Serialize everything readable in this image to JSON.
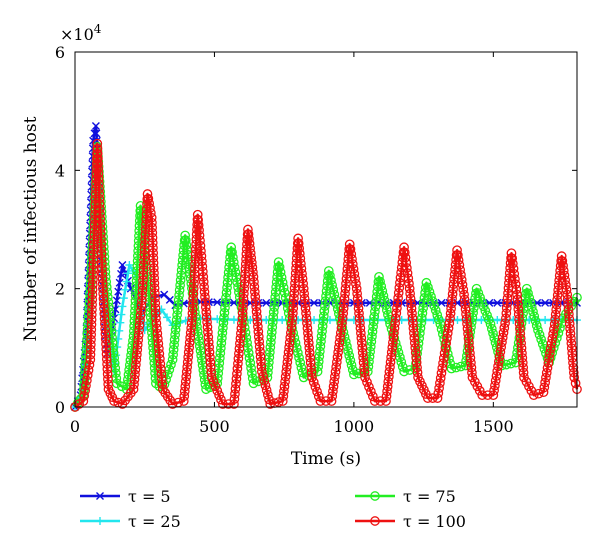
{
  "chart_data": {
    "type": "line",
    "xlabel": "Time (s)",
    "ylabel": "Number of infectious host",
    "y_multiplier_label": "×10",
    "y_multiplier_exp": "4",
    "xlim": [
      0,
      1800
    ],
    "ylim": [
      0,
      6
    ],
    "xticks": [
      "0",
      "500",
      "1000",
      "1500"
    ],
    "yticks": [
      "0",
      "2",
      "4",
      "6"
    ],
    "grid": false,
    "legend_placement": "bottom",
    "series": [
      {
        "name": "τ = 5",
        "color": "#1010dd",
        "marker": "x-cross",
        "x": [
          0,
          20,
          40,
          55,
          65,
          75,
          85,
          95,
          105,
          115,
          130,
          150,
          170,
          200,
          240,
          280,
          320,
          360,
          420,
          600,
          1000,
          1800
        ],
        "y": [
          0.0,
          0.2,
          1.2,
          3.2,
          4.5,
          4.75,
          4.0,
          2.6,
          1.5,
          0.9,
          1.2,
          1.8,
          2.4,
          2.0,
          1.6,
          1.85,
          1.9,
          1.72,
          1.78,
          1.76,
          1.76,
          1.76
        ]
      },
      {
        "name": "τ = 25",
        "color": "#22e6ee",
        "marker": "plus",
        "x": [
          0,
          30,
          60,
          80,
          90,
          110,
          140,
          170,
          195,
          220,
          250,
          280,
          310,
          350,
          420,
          600,
          1000,
          1800
        ],
        "y": [
          0.0,
          0.3,
          2.2,
          3.6,
          3.3,
          1.5,
          0.6,
          1.7,
          2.4,
          2.2,
          1.3,
          1.5,
          1.65,
          1.38,
          1.5,
          1.47,
          1.47,
          1.47
        ]
      },
      {
        "name": "τ = 75",
        "color": "#22ee22",
        "marker": "circle",
        "x": [
          0,
          30,
          55,
          80,
          110,
          150,
          185,
          210,
          235,
          260,
          290,
          315,
          350,
          395,
          430,
          470,
          510,
          560,
          600,
          640,
          690,
          730,
          770,
          820,
          870,
          910,
          950,
          1000,
          1050,
          1090,
          1130,
          1180,
          1220,
          1260,
          1310,
          1350,
          1400,
          1440,
          1490,
          1530,
          1580,
          1620,
          1660,
          1700,
          1750,
          1800
        ],
        "y": [
          0.0,
          0.2,
          2.0,
          4.4,
          2.2,
          0.4,
          0.3,
          1.2,
          3.4,
          2.2,
          0.4,
          0.3,
          0.8,
          2.9,
          1.6,
          0.3,
          0.4,
          2.7,
          1.6,
          0.4,
          0.5,
          2.45,
          1.5,
          0.5,
          0.6,
          2.3,
          1.5,
          0.55,
          0.6,
          2.2,
          1.4,
          0.6,
          0.65,
          2.1,
          1.4,
          0.65,
          0.7,
          2.0,
          1.4,
          0.7,
          0.75,
          2.0,
          1.3,
          0.75,
          1.5,
          1.85
        ]
      },
      {
        "name": "τ = 100",
        "color": "#ee1111",
        "marker": "circle",
        "x": [
          0,
          30,
          55,
          70,
          80,
          100,
          120,
          140,
          170,
          210,
          240,
          260,
          275,
          290,
          315,
          350,
          390,
          420,
          440,
          460,
          490,
          530,
          570,
          600,
          620,
          640,
          670,
          700,
          745,
          780,
          800,
          820,
          850,
          880,
          920,
          960,
          985,
          1010,
          1040,
          1075,
          1115,
          1150,
          1180,
          1200,
          1230,
          1265,
          1300,
          1345,
          1370,
          1395,
          1425,
          1460,
          1500,
          1545,
          1565,
          1585,
          1610,
          1645,
          1680,
          1720,
          1745,
          1765,
          1790,
          1800
        ],
        "y": [
          0.0,
          0.1,
          0.8,
          3.0,
          4.45,
          2.0,
          0.3,
          0.1,
          0.05,
          0.3,
          1.8,
          3.6,
          3.2,
          1.5,
          0.3,
          0.05,
          0.1,
          1.5,
          3.25,
          2.2,
          0.5,
          0.05,
          0.05,
          1.5,
          3.0,
          2.2,
          0.6,
          0.05,
          0.1,
          1.5,
          2.85,
          2.0,
          0.5,
          0.1,
          0.1,
          1.5,
          2.75,
          2.0,
          0.5,
          0.1,
          0.1,
          1.5,
          2.7,
          2.0,
          0.5,
          0.15,
          0.15,
          1.5,
          2.65,
          1.9,
          0.5,
          0.2,
          0.2,
          1.5,
          2.6,
          1.9,
          0.5,
          0.2,
          0.25,
          1.4,
          2.55,
          1.9,
          0.5,
          0.3
        ]
      }
    ]
  }
}
